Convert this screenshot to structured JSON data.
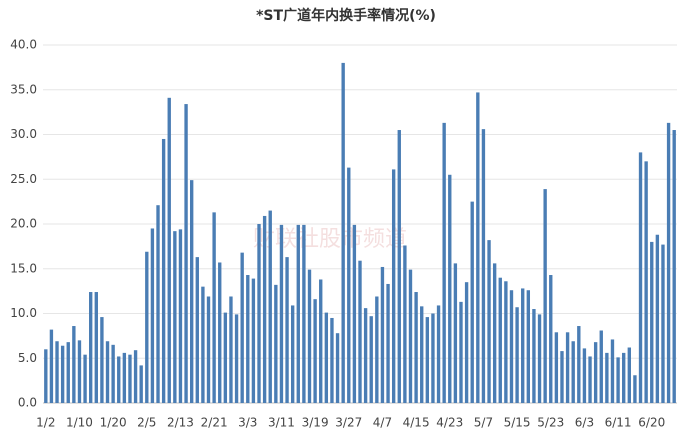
{
  "chart_data": {
    "type": "bar",
    "title": "*ST广道年内换手率情况(%)",
    "watermark": "财联社股市频道",
    "color": "#4a7db4",
    "grid": true,
    "ylim": [
      0,
      40
    ],
    "yticks": [
      {
        "value": 0,
        "label": "0.0"
      },
      {
        "value": 5,
        "label": "5.0"
      },
      {
        "value": 10,
        "label": "10.0"
      },
      {
        "value": 15,
        "label": "15.0"
      },
      {
        "value": 20,
        "label": "20.0"
      },
      {
        "value": 25,
        "label": "25.0"
      },
      {
        "value": 30,
        "label": "30.0"
      },
      {
        "value": 35,
        "label": "35.0"
      },
      {
        "value": 40,
        "label": "40.0"
      }
    ],
    "categories": [
      "1/2",
      null,
      null,
      null,
      null,
      null,
      "1/10",
      null,
      null,
      null,
      null,
      null,
      "1/20",
      null,
      null,
      null,
      null,
      null,
      "2/5",
      null,
      null,
      null,
      null,
      null,
      "2/13",
      null,
      null,
      null,
      null,
      null,
      "2/21",
      null,
      null,
      null,
      null,
      null,
      "3/3",
      null,
      null,
      null,
      null,
      null,
      "3/11",
      null,
      null,
      null,
      null,
      null,
      "3/19",
      null,
      null,
      null,
      null,
      null,
      "3/27",
      null,
      null,
      null,
      null,
      null,
      "4/7",
      null,
      null,
      null,
      null,
      null,
      "4/15",
      null,
      null,
      null,
      null,
      null,
      "4/23",
      null,
      null,
      null,
      null,
      null,
      "5/7",
      null,
      null,
      null,
      null,
      null,
      "5/15",
      null,
      null,
      null,
      null,
      null,
      "5/23",
      null,
      null,
      null,
      null,
      null,
      "6/3",
      null,
      null,
      null,
      null,
      null,
      "6/11",
      null,
      null,
      null,
      null,
      null,
      "6/20",
      null,
      null,
      null,
      null
    ],
    "values": [
      6.0,
      8.2,
      6.9,
      6.4,
      6.8,
      8.6,
      7.0,
      5.4,
      12.4,
      12.4,
      9.6,
      6.9,
      6.5,
      5.2,
      5.6,
      5.4,
      5.9,
      4.2,
      16.9,
      19.5,
      22.1,
      29.5,
      34.1,
      19.2,
      19.4,
      33.4,
      24.9,
      16.3,
      13.0,
      11.9,
      21.3,
      15.7,
      10.1,
      11.9,
      9.9,
      16.8,
      14.3,
      13.9,
      20.0,
      20.9,
      21.5,
      13.2,
      19.9,
      16.3,
      10.9,
      19.9,
      19.9,
      14.9,
      11.6,
      13.8,
      10.1,
      9.5,
      7.8,
      38.0,
      26.3,
      19.9,
      15.9,
      10.6,
      9.7,
      11.9,
      15.2,
      13.3,
      26.1,
      30.5,
      17.6,
      14.9,
      12.4,
      10.8,
      9.6,
      10.0,
      10.9,
      31.3,
      25.5,
      15.6,
      11.3,
      13.5,
      22.5,
      34.7,
      30.6,
      18.2,
      15.6,
      14.0,
      13.6,
      12.6,
      10.7,
      12.8,
      12.6,
      10.5,
      9.9,
      23.9,
      14.3,
      7.9,
      5.8,
      7.9,
      6.9,
      8.6,
      6.1,
      5.2,
      6.8,
      8.1,
      5.6,
      7.1,
      5.1,
      5.6,
      6.2,
      3.1,
      28.0,
      27.0,
      18.0,
      18.8,
      17.7,
      31.3,
      30.5
    ]
  }
}
